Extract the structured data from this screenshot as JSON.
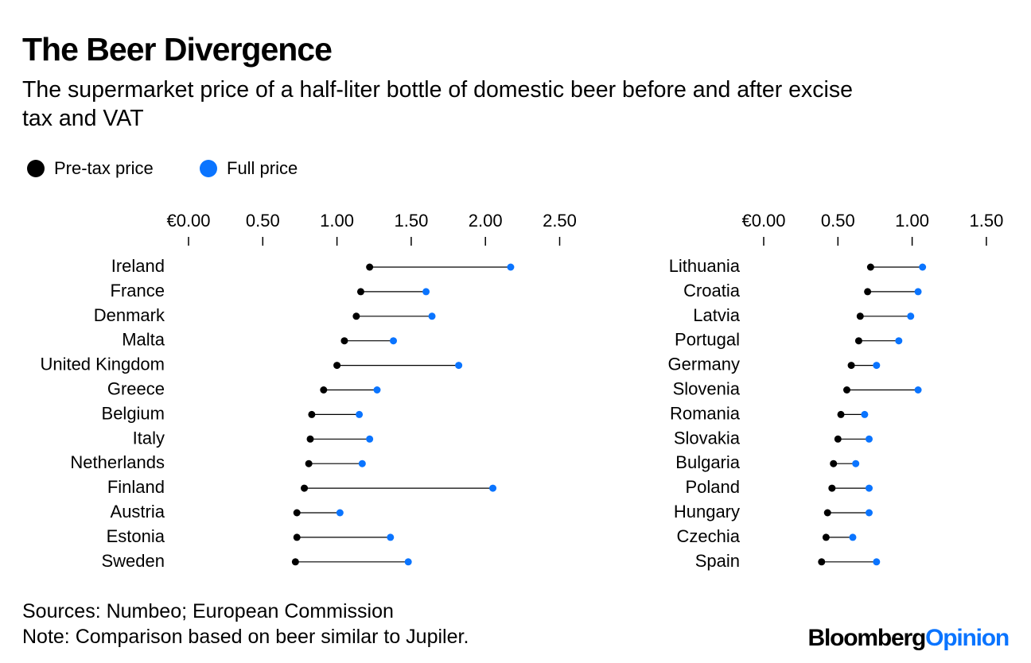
{
  "title": "The Beer Divergence",
  "subtitle_lines": [
    "The supermarket price of a half-liter bottle of domestic beer before and after excise",
    "tax and VAT"
  ],
  "legend": [
    {
      "label": "Pre-tax price",
      "color": "#000000"
    },
    {
      "label": "Full price",
      "color": "#0a74ff"
    }
  ],
  "footer": {
    "sources": "Sources: Numbeo; European Commission",
    "note": "Note: Comparison based on beer similar to Jupiler.",
    "logo_part1": "Bloomberg",
    "logo_part2": "Opinion"
  },
  "chart_data": [
    {
      "type": "dumbbell",
      "xlim": [
        0,
        2.5
      ],
      "tick_labels": [
        "€0.00",
        "0.50",
        "1.00",
        "1.50",
        "2.00",
        "2.50"
      ],
      "ticks": [
        0,
        0.5,
        1,
        1.5,
        2,
        2.5
      ],
      "categories": [
        "Ireland",
        "France",
        "Denmark",
        "Malta",
        "United Kingdom",
        "Greece",
        "Belgium",
        "Italy",
        "Netherlands",
        "Finland",
        "Austria",
        "Estonia",
        "Sweden"
      ],
      "series": [
        {
          "name": "Pre-tax price",
          "values": [
            1.22,
            1.16,
            1.13,
            1.05,
            1.0,
            0.91,
            0.83,
            0.82,
            0.81,
            0.78,
            0.73,
            0.73,
            0.72
          ]
        },
        {
          "name": "Full price",
          "values": [
            2.17,
            1.6,
            1.64,
            1.38,
            1.82,
            1.27,
            1.15,
            1.22,
            1.17,
            2.05,
            1.02,
            1.36,
            1.48
          ]
        }
      ]
    },
    {
      "type": "dumbbell",
      "xlim": [
        0,
        1.5
      ],
      "tick_labels": [
        "€0.00",
        "0.50",
        "1.00",
        "1.50"
      ],
      "ticks": [
        0,
        0.5,
        1,
        1.5
      ],
      "categories": [
        "Lithuania",
        "Croatia",
        "Latvia",
        "Portugal",
        "Germany",
        "Slovenia",
        "Romania",
        "Slovakia",
        "Bulgaria",
        "Poland",
        "Hungary",
        "Czechia",
        "Spain"
      ],
      "series": [
        {
          "name": "Pre-tax price",
          "values": [
            0.72,
            0.7,
            0.65,
            0.64,
            0.59,
            0.56,
            0.52,
            0.5,
            0.47,
            0.46,
            0.43,
            0.42,
            0.39
          ]
        },
        {
          "name": "Full price",
          "values": [
            1.07,
            1.04,
            0.99,
            0.91,
            0.76,
            1.04,
            0.68,
            0.71,
            0.62,
            0.71,
            0.71,
            0.6,
            0.76
          ]
        }
      ]
    }
  ]
}
